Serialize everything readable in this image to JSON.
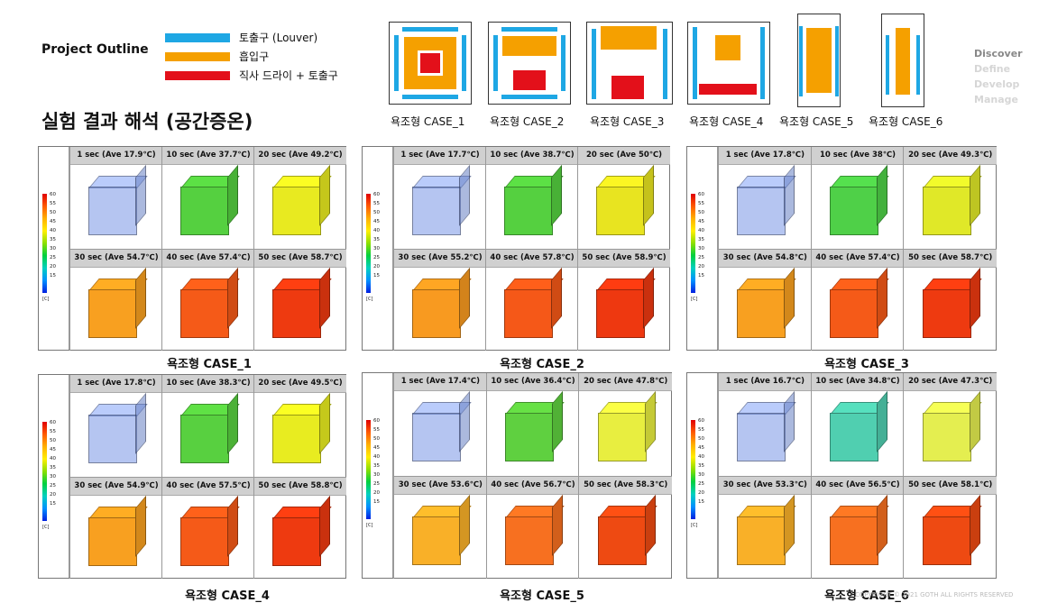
{
  "header": {
    "project_outline": "Project Outline",
    "legend": [
      {
        "label": "토출구 (Louver)",
        "color": "#1ea7e4"
      },
      {
        "label": "흡입구",
        "color": "#f5a000"
      },
      {
        "label": "직사 드라이 + 토출구",
        "color": "#e3101a"
      }
    ],
    "title": "실험 결과 해석 (공간증온)",
    "nav": [
      {
        "label": "Discover",
        "color": "#888888"
      },
      {
        "label": "Define",
        "color": "#d6d6d6"
      },
      {
        "label": "Develop",
        "color": "#d6d6d6"
      },
      {
        "label": "Manage",
        "color": "#d6d6d6"
      }
    ]
  },
  "case_icons": [
    {
      "label": "욕조형 CASE_1"
    },
    {
      "label": "욕조형 CASE_2"
    },
    {
      "label": "욕조형 CASE_3"
    },
    {
      "label": "욕조형 CASE_4"
    },
    {
      "label": "욕조형 CASE_5"
    },
    {
      "label": "욕조형 CASE_6"
    }
  ],
  "scale_ticks": [
    "60",
    "55",
    "50",
    "45",
    "40",
    "35",
    "30",
    "25",
    "20",
    "15"
  ],
  "scale_unit": "[C]",
  "panels": [
    {
      "caption": "욕조형 CASE_1",
      "times": [
        "1 sec (Ave 17.9℃)",
        "10 sec (Ave 37.7℃)",
        "20 sec (Ave 49.2℃)",
        "30 sec (Ave 54.7℃)",
        "40 sec (Ave 57.4℃)",
        "50 sec (Ave 58.7℃)"
      ]
    },
    {
      "caption": "욕조형 CASE_2",
      "times": [
        "1 sec (Ave 17.7℃)",
        "10 sec (Ave 38.7℃)",
        "20 sec (Ave 50℃)",
        "30 sec (Ave 55.2℃)",
        "40 sec (Ave 57.8℃)",
        "50 sec (Ave 58.9℃)"
      ]
    },
    {
      "caption": "욕조형 CASE_3",
      "times": [
        "1 sec (Ave 17.8℃)",
        "10 sec (Ave 38℃)",
        "20 sec (Ave 49.3℃)",
        "30 sec (Ave 54.8℃)",
        "40 sec (Ave 57.4℃)",
        "50 sec (Ave 58.7℃)"
      ]
    },
    {
      "caption": "욕조형 CASE_4",
      "times": [
        "1 sec (Ave 17.8℃)",
        "10 sec (Ave 38.3℃)",
        "20 sec (Ave 49.5℃)",
        "30 sec (Ave 54.9℃)",
        "40 sec (Ave 57.5℃)",
        "50 sec (Ave 58.8℃)"
      ]
    },
    {
      "caption": "욕조형 CASE_5",
      "times": [
        "1 sec (Ave 17.4℃)",
        "10 sec (Ave 36.4℃)",
        "20 sec (Ave 47.8℃)",
        "30 sec (Ave 53.6℃)",
        "40 sec (Ave 56.7℃)",
        "50 sec (Ave 58.3℃)"
      ]
    },
    {
      "caption": "욕조형 CASE_6",
      "times": [
        "1 sec (Ave 16.7℃)",
        "10 sec (Ave 34.8℃)",
        "20 sec (Ave 47.3℃)",
        "30 sec (Ave 53.3℃)",
        "40 sec (Ave 56.5℃)",
        "50 sec (Ave 58.1℃)"
      ]
    }
  ],
  "footer": {
    "copyright": "COPYRIGHT © 2021 GOTH ALL RIGHTS RESERVED"
  }
}
